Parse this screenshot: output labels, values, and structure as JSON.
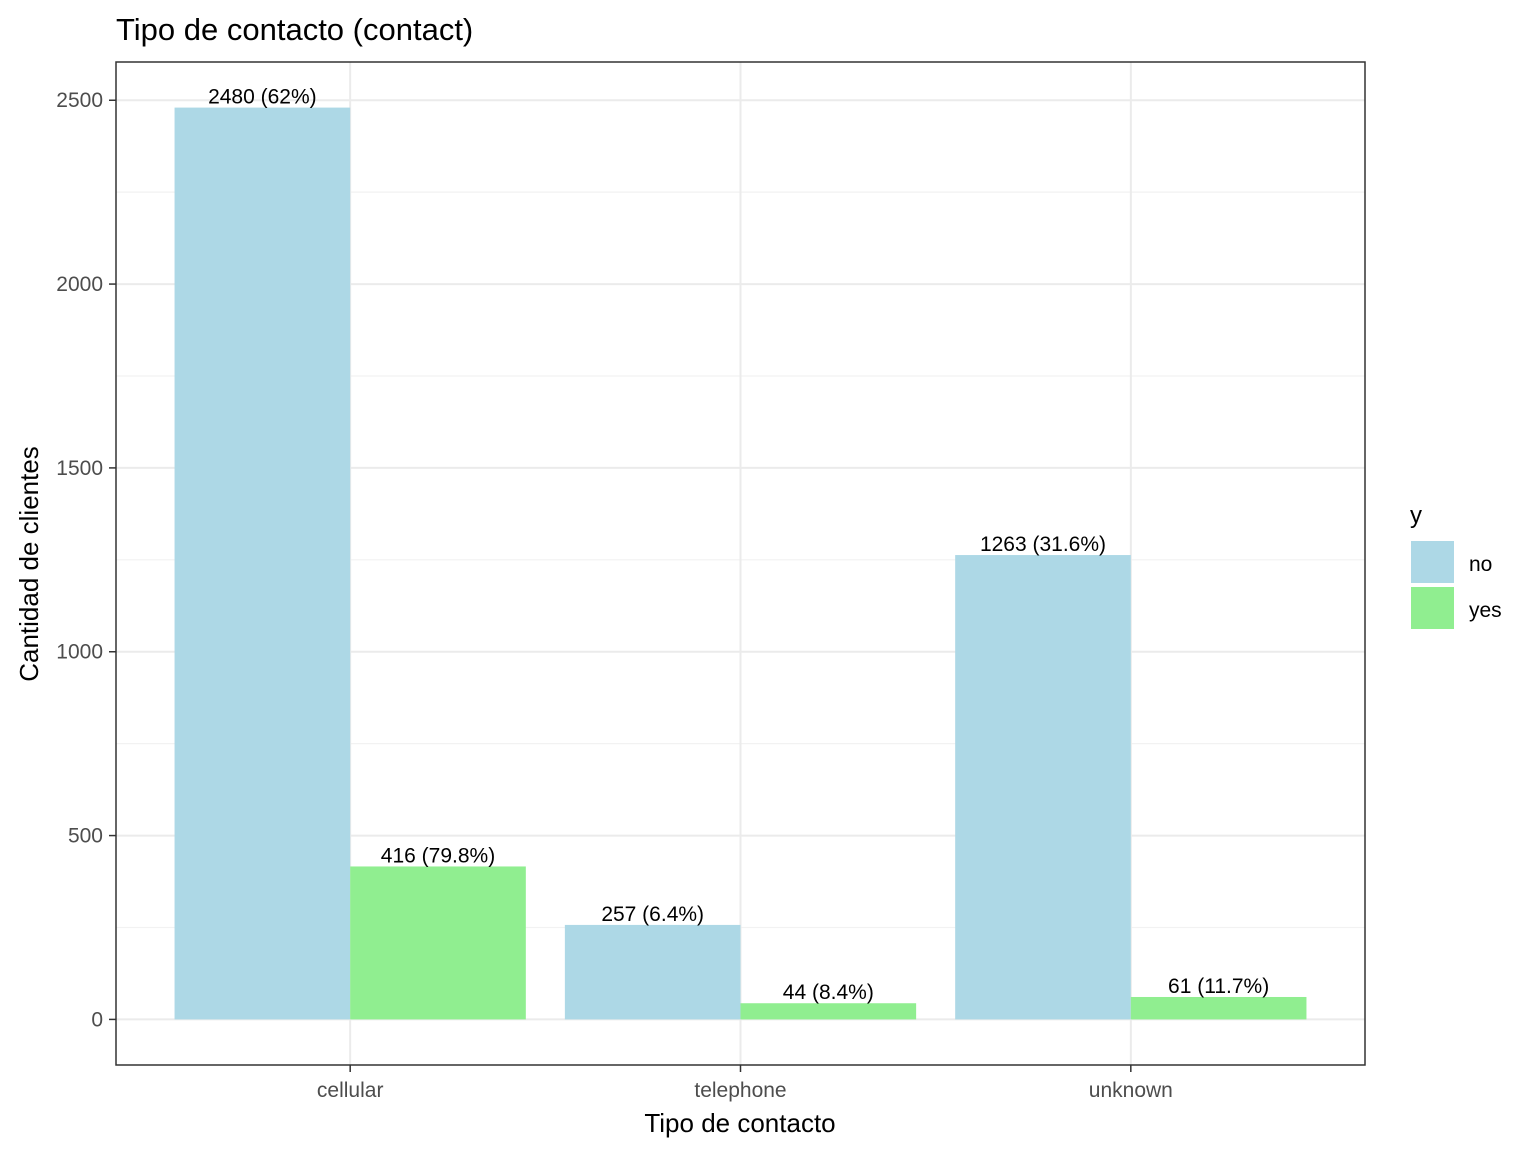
{
  "chart_data": {
    "type": "bar",
    "title": "Tipo de contacto (contact)",
    "xlabel": "Tipo de contacto",
    "ylabel": "Cantidad de clientes",
    "categories": [
      "cellular",
      "telephone",
      "unknown"
    ],
    "series": [
      {
        "name": "no",
        "color": "#add8e6",
        "values": [
          2480,
          257,
          1263
        ],
        "labels": [
          "2480 (62%)",
          "257 (6.4%)",
          "1263 (31.6%)"
        ]
      },
      {
        "name": "yes",
        "color": "#90ee90",
        "values": [
          416,
          44,
          61
        ],
        "labels": [
          "416 (79.8%)",
          "44 (8.4%)",
          "61 (11.7%)"
        ]
      }
    ],
    "ylim": [
      -124,
      2604
    ],
    "yticks": [
      0,
      500,
      1000,
      1500,
      2000,
      2500
    ],
    "ytick_labels": [
      "0",
      "500",
      "1000",
      "1500",
      "2000",
      "2500"
    ],
    "y_minor_ticks": [
      250,
      750,
      1250,
      1750,
      2250
    ],
    "grid": true,
    "legend": {
      "title": "y",
      "position": "right"
    }
  }
}
